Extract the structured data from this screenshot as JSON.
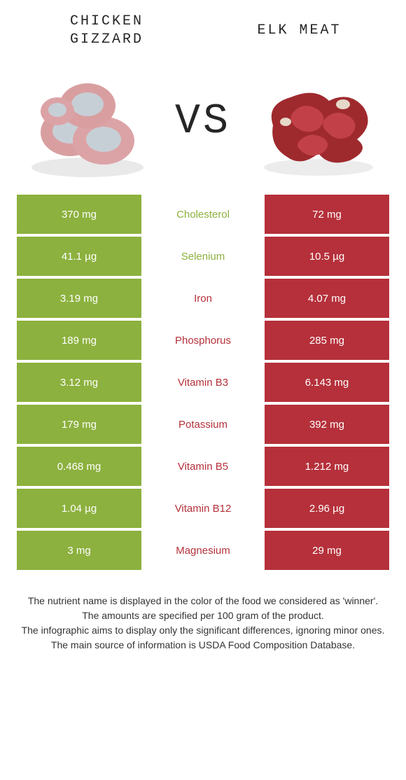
{
  "titles": {
    "left": "CHICKEN\nGIZZARD",
    "right": "ELK MEAT"
  },
  "vs_label": "VS",
  "colors": {
    "left": "#8cb13e",
    "right": "#b5303a",
    "mid_bg": "#ffffff"
  },
  "rows": [
    {
      "left": "370 mg",
      "label": "Cholesterol",
      "right": "72 mg",
      "winner": "left"
    },
    {
      "left": "41.1 µg",
      "label": "Selenium",
      "right": "10.5 µg",
      "winner": "left"
    },
    {
      "left": "3.19 mg",
      "label": "Iron",
      "right": "4.07 mg",
      "winner": "right"
    },
    {
      "left": "189 mg",
      "label": "Phosphorus",
      "right": "285 mg",
      "winner": "right"
    },
    {
      "left": "3.12 mg",
      "label": "Vitamin B3",
      "right": "6.143 mg",
      "winner": "right"
    },
    {
      "left": "179 mg",
      "label": "Potassium",
      "right": "392 mg",
      "winner": "right"
    },
    {
      "left": "0.468 mg",
      "label": "Vitamin B5",
      "right": "1.212 mg",
      "winner": "right"
    },
    {
      "left": "1.04 µg",
      "label": "Vitamin B12",
      "right": "2.96 µg",
      "winner": "right"
    },
    {
      "left": "3 mg",
      "label": "Magnesium",
      "right": "29 mg",
      "winner": "right"
    }
  ],
  "footer_lines": [
    "The nutrient name is displayed in the color of the food we considered as 'winner'.",
    "The amounts are specified per 100 gram of the product.",
    "The infographic aims to display only the significant differences, ignoring minor ones.",
    "The main source of information is USDA Food Composition Database."
  ]
}
